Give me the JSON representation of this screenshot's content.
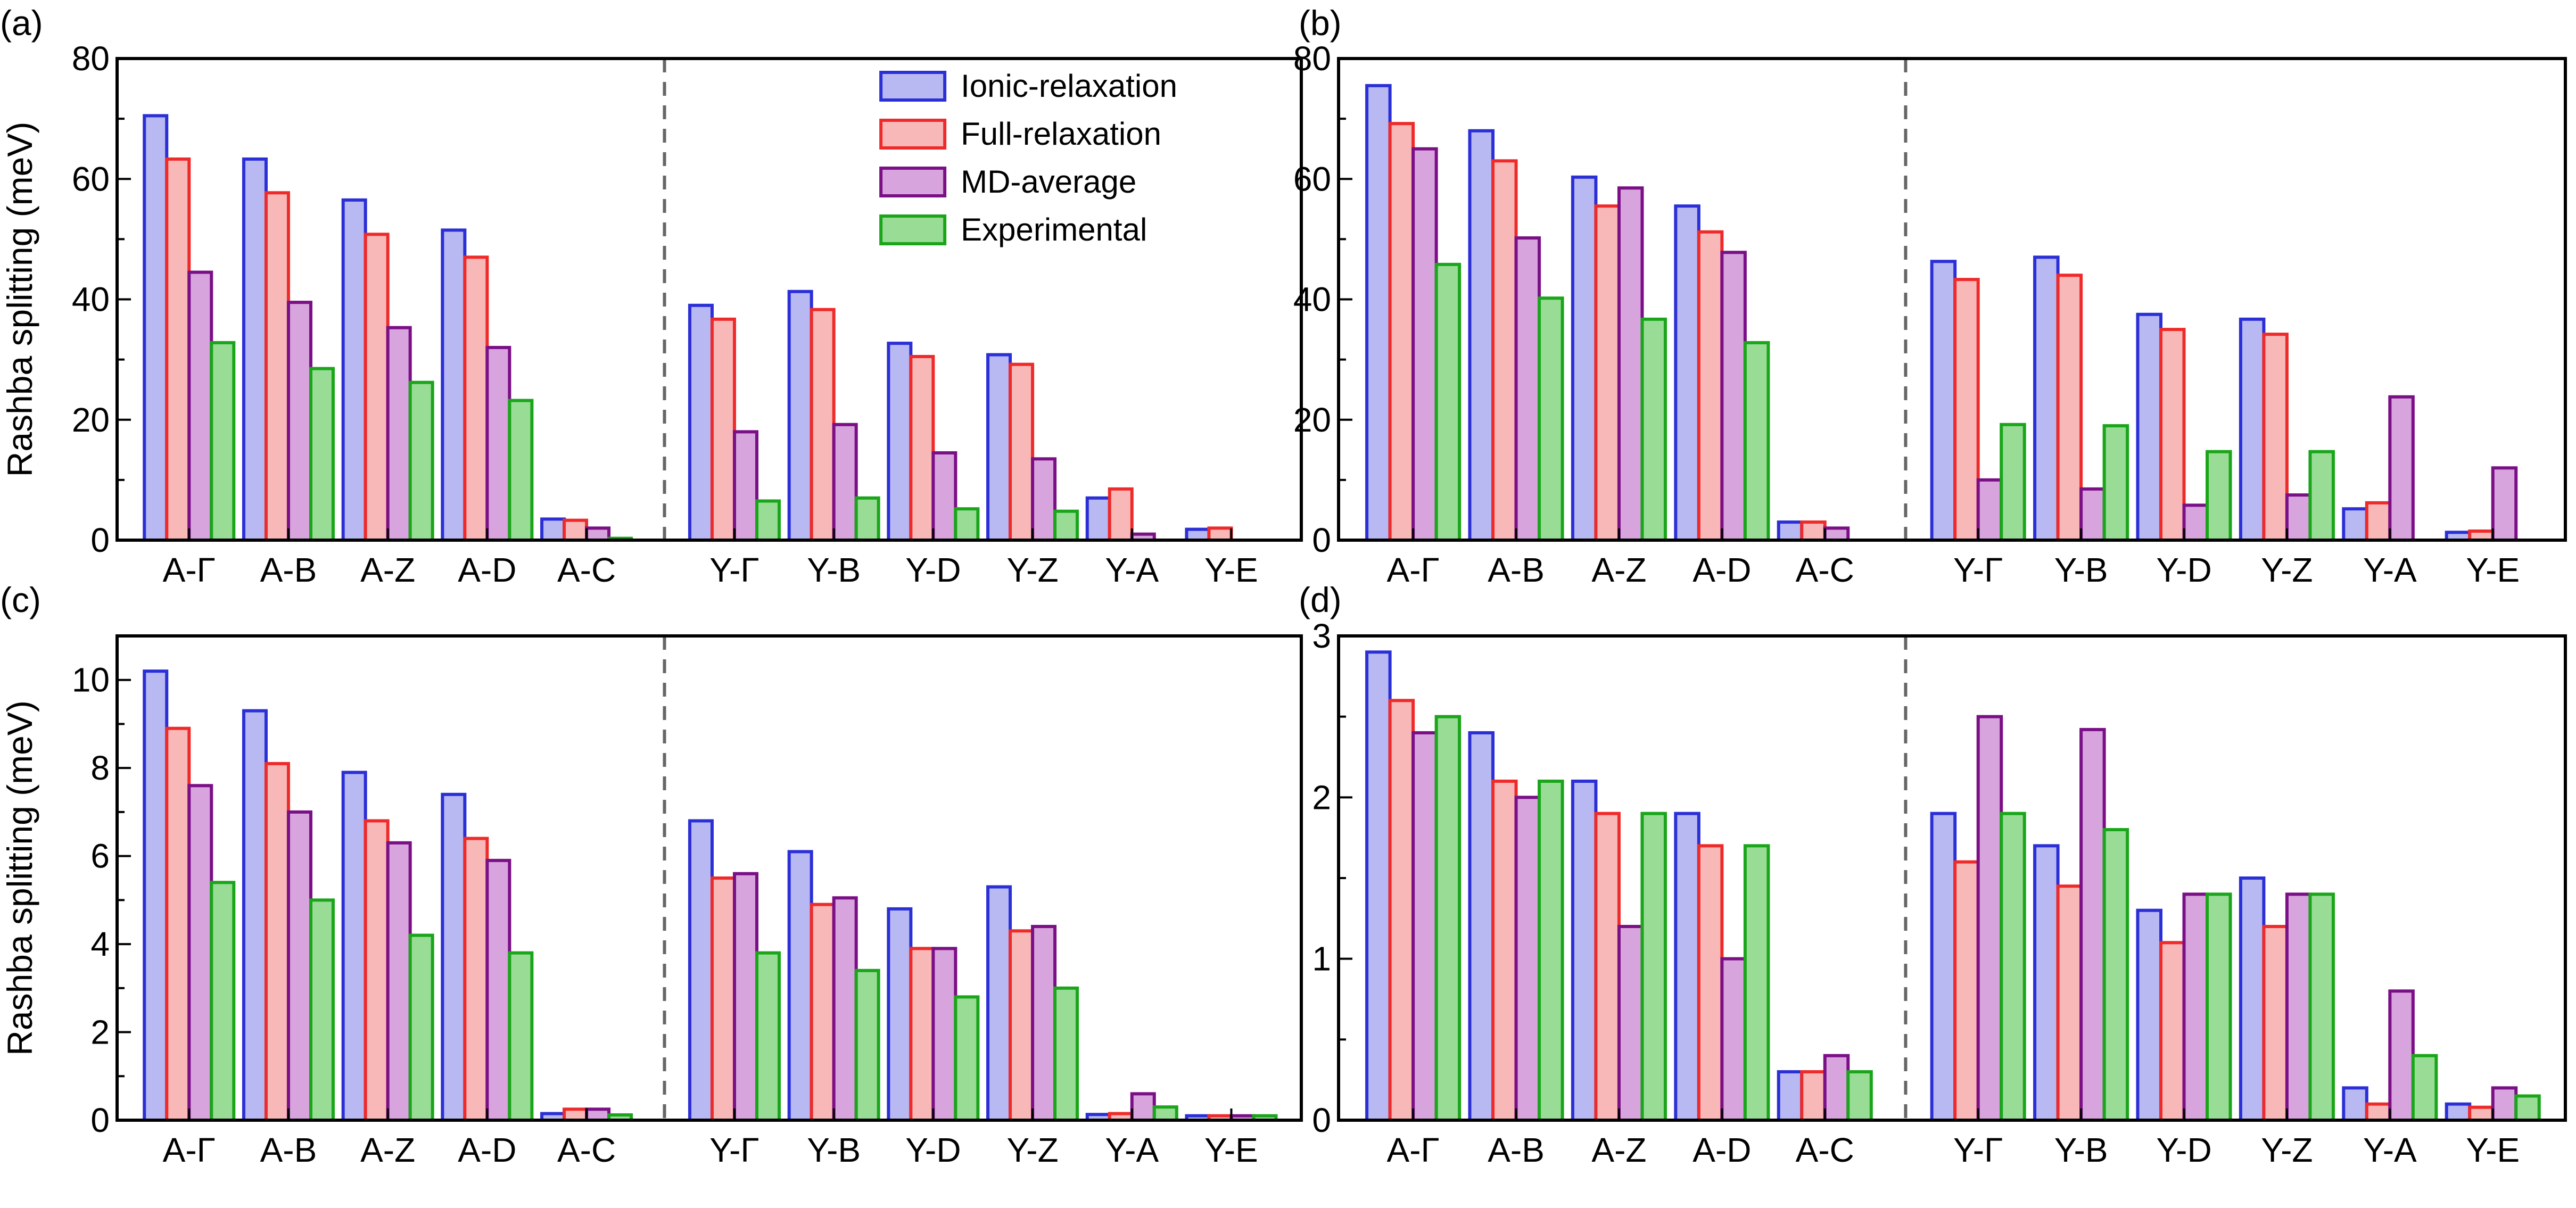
{
  "series_names": [
    "Ionic-relaxation",
    "Full-relaxation",
    "MD-average",
    "Experimental"
  ],
  "series_colors": [
    {
      "stroke": "#2b2fd6",
      "fill": "#b8b9f2"
    },
    {
      "stroke": "#ef2a2a",
      "fill": "#f8b8b8"
    },
    {
      "stroke": "#7a0f86",
      "fill": "#d8a4dd"
    },
    {
      "stroke": "#1aa51a",
      "fill": "#98dc96"
    }
  ],
  "chart_data": [
    {
      "panel": "(a)",
      "type": "bar",
      "ylabel": "Rashba splitting (meV)",
      "ylim": [
        0,
        80
      ],
      "yticks": [
        "0",
        "20",
        "40",
        "60",
        "80"
      ],
      "categories": [
        "A-Γ",
        "A-B",
        "A-Z",
        "A-D",
        "A-C",
        "Y-Γ",
        "Y-B",
        "Y-D",
        "Y-Z",
        "Y-A",
        "Y-E"
      ],
      "series": [
        {
          "name": "Ionic-relaxation",
          "values": [
            70.5,
            63.3,
            56.5,
            51.5,
            3.5,
            39,
            41.3,
            32.7,
            30.8,
            7,
            1.8
          ]
        },
        {
          "name": "Full-relaxation",
          "values": [
            63.3,
            57.7,
            50.8,
            47,
            3.3,
            36.7,
            38.3,
            30.5,
            29.2,
            8.5,
            2
          ]
        },
        {
          "name": "MD-average",
          "values": [
            44.5,
            39.5,
            35.3,
            32,
            2,
            18,
            19.2,
            14.5,
            13.5,
            1,
            0
          ]
        },
        {
          "name": "Experimental",
          "values": [
            32.8,
            28.5,
            26.2,
            23.2,
            0.3,
            6.5,
            7,
            5.2,
            4.8,
            0,
            0
          ]
        }
      ],
      "legend": "top-right"
    },
    {
      "panel": "(b)",
      "type": "bar",
      "ylabel": "",
      "ylim": [
        0,
        80
      ],
      "yticks": [
        "0",
        "20",
        "40",
        "60",
        "80"
      ],
      "categories": [
        "A-Γ",
        "A-B",
        "A-Z",
        "A-D",
        "A-C",
        "Y-Γ",
        "Y-B",
        "Y-D",
        "Y-Z",
        "Y-A",
        "Y-E"
      ],
      "series": [
        {
          "name": "Ionic-relaxation",
          "values": [
            75.5,
            68,
            60.3,
            55.5,
            3,
            46.3,
            47,
            37.5,
            36.7,
            5.2,
            1.3
          ]
        },
        {
          "name": "Full-relaxation",
          "values": [
            69.2,
            63,
            55.5,
            51.2,
            3,
            43.3,
            44,
            35,
            34.2,
            6.2,
            1.5
          ]
        },
        {
          "name": "MD-average",
          "values": [
            65,
            50.2,
            58.5,
            47.8,
            2,
            10,
            8.5,
            5.8,
            7.5,
            23.8,
            12
          ]
        },
        {
          "name": "Experimental",
          "values": [
            45.8,
            40.2,
            36.7,
            32.8,
            0,
            19.2,
            19,
            14.7,
            14.7,
            0,
            0
          ]
        }
      ]
    },
    {
      "panel": "(c)",
      "type": "bar",
      "ylabel": "Rashba splitting (meV)",
      "ylim": [
        0,
        11
      ],
      "yticks": [
        "0",
        "2",
        "4",
        "6",
        "8",
        "10"
      ],
      "categories": [
        "A-Γ",
        "A-B",
        "A-Z",
        "A-D",
        "A-C",
        "Y-Γ",
        "Y-B",
        "Y-D",
        "Y-Z",
        "Y-A",
        "Y-E"
      ],
      "series": [
        {
          "name": "Ionic-relaxation",
          "values": [
            10.2,
            9.3,
            7.9,
            7.4,
            0.15,
            6.8,
            6.1,
            4.8,
            5.3,
            0.13,
            0.1
          ]
        },
        {
          "name": "Full-relaxation",
          "values": [
            8.9,
            8.1,
            6.8,
            6.4,
            0.25,
            5.5,
            4.9,
            3.9,
            4.3,
            0.15,
            0.1
          ]
        },
        {
          "name": "MD-average",
          "values": [
            7.6,
            7,
            6.3,
            5.9,
            0.25,
            5.6,
            5.05,
            3.9,
            4.4,
            0.6,
            0.1
          ]
        },
        {
          "name": "Experimental",
          "values": [
            5.4,
            5,
            4.2,
            3.8,
            0.12,
            3.8,
            3.4,
            2.8,
            3,
            0.3,
            0.1
          ]
        }
      ]
    },
    {
      "panel": "(d)",
      "type": "bar",
      "ylabel": "",
      "ylim": [
        0,
        3
      ],
      "yticks": [
        "0",
        "1",
        "2",
        "3"
      ],
      "categories": [
        "A-Γ",
        "A-B",
        "A-Z",
        "A-D",
        "A-C",
        "Y-Γ",
        "Y-B",
        "Y-D",
        "Y-Z",
        "Y-A",
        "Y-E"
      ],
      "series": [
        {
          "name": "Ionic-relaxation",
          "values": [
            2.9,
            2.4,
            2.1,
            1.9,
            0.3,
            1.9,
            1.7,
            1.3,
            1.5,
            0.2,
            0.1
          ]
        },
        {
          "name": "Full-relaxation",
          "values": [
            2.6,
            2.1,
            1.9,
            1.7,
            0.3,
            1.6,
            1.45,
            1.1,
            1.2,
            0.1,
            0.08
          ]
        },
        {
          "name": "MD-average",
          "values": [
            2.4,
            2,
            1.2,
            1,
            0.4,
            2.5,
            2.42,
            1.4,
            1.4,
            0.8,
            0.2
          ]
        },
        {
          "name": "Experimental",
          "values": [
            2.5,
            2.1,
            1.9,
            1.7,
            0.3,
            1.9,
            1.8,
            1.4,
            1.4,
            0.4,
            0.15
          ]
        }
      ]
    }
  ]
}
